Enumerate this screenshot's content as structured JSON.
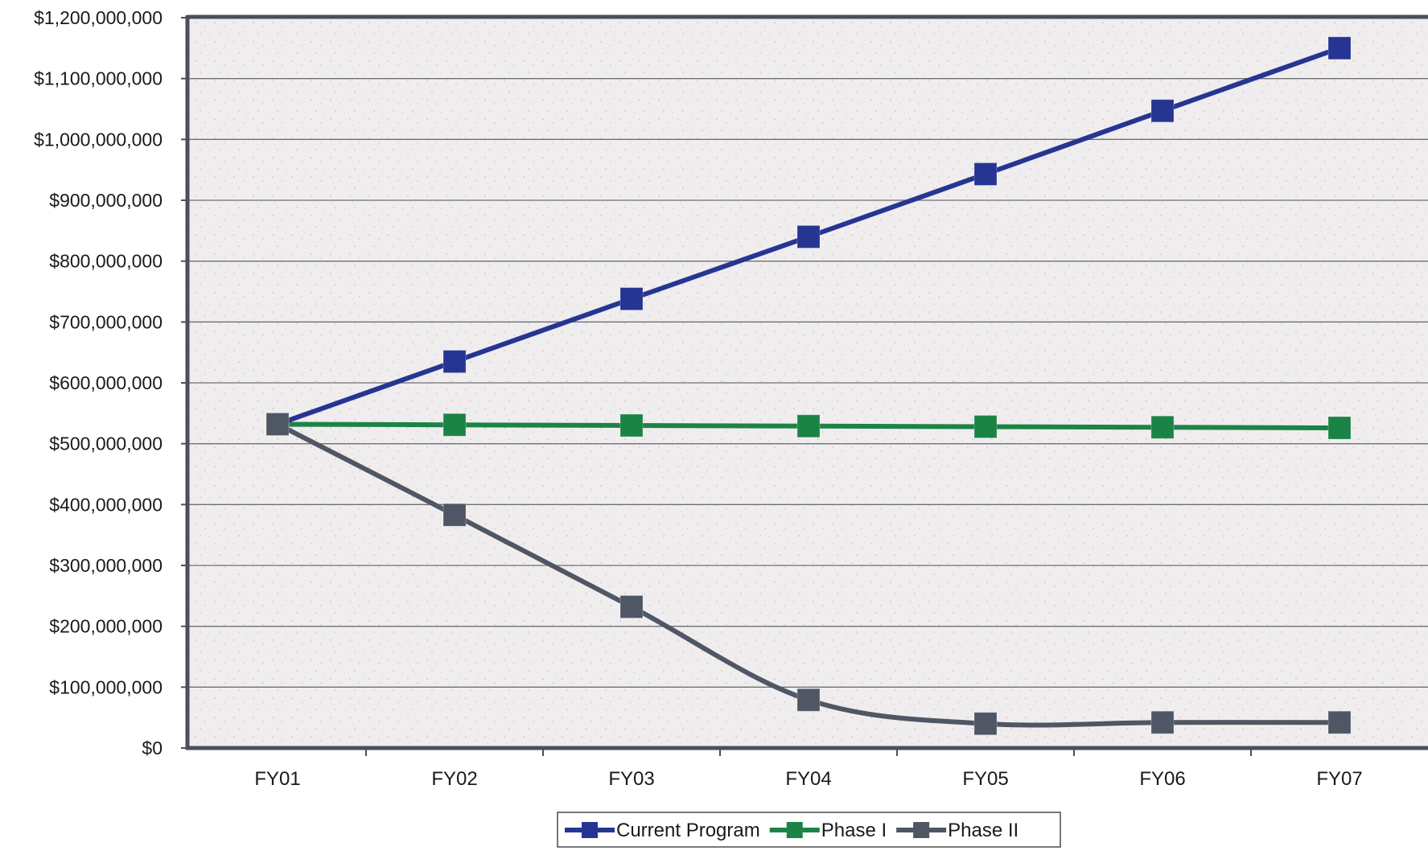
{
  "chart_data": {
    "type": "line",
    "title": "",
    "xlabel": "",
    "ylabel": "",
    "categories": [
      "FY01",
      "FY02",
      "FY03",
      "FY04",
      "FY05",
      "FY06",
      "FY07"
    ],
    "ylim": [
      0,
      1200000000
    ],
    "y_ticks": [
      {
        "value": 0,
        "label": "$0"
      },
      {
        "value": 100000000,
        "label": "$100,000,000"
      },
      {
        "value": 200000000,
        "label": "$200,000,000"
      },
      {
        "value": 300000000,
        "label": "$300,000,000"
      },
      {
        "value": 400000000,
        "label": "$400,000,000"
      },
      {
        "value": 500000000,
        "label": "$500,000,000"
      },
      {
        "value": 600000000,
        "label": "$600,000,000"
      },
      {
        "value": 700000000,
        "label": "$700,000,000"
      },
      {
        "value": 800000000,
        "label": "$800,000,000"
      },
      {
        "value": 900000000,
        "label": "$900,000,000"
      },
      {
        "value": 1000000000,
        "label": "$1,000,000,000"
      },
      {
        "value": 1100000000,
        "label": "$1,100,000,000"
      },
      {
        "value": 1200000000,
        "label": "$1,200,000,000"
      }
    ],
    "grid": true,
    "legend_position": "bottom",
    "series": [
      {
        "name": "Current Program",
        "color": "#263592",
        "values": [
          532000000,
          635000000,
          738000000,
          840000000,
          943000000,
          1047000000,
          1150000000
        ]
      },
      {
        "name": "Phase I",
        "color": "#1c8346",
        "values": [
          532000000,
          531000000,
          530000000,
          529000000,
          528000000,
          527000000,
          526000000
        ]
      },
      {
        "name": "Phase II",
        "color": "#4f5664",
        "values": [
          532000000,
          383000000,
          232000000,
          79000000,
          40000000,
          42000000,
          42000000
        ]
      }
    ]
  }
}
